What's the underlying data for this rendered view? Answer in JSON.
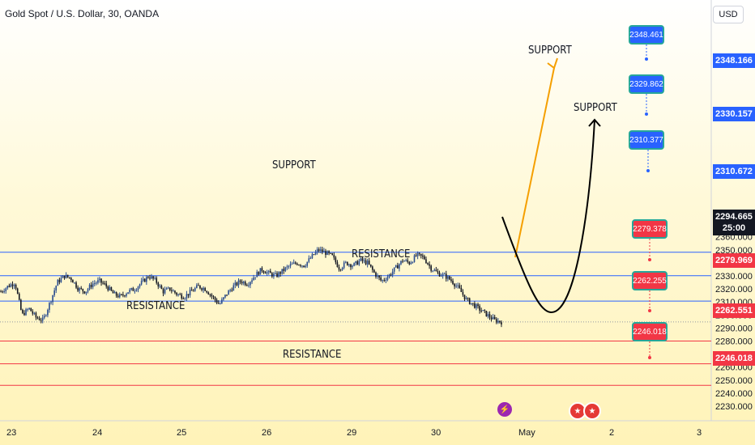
{
  "header": {
    "symbol": "Gold Spot / U.S. Dollar, 30, OANDA",
    "currency": "USD"
  },
  "chart_data": {
    "type": "candlestick",
    "y_ticks": [
      "2230.000",
      "2240.000",
      "2250.000",
      "2260.000",
      "2270.000",
      "2280.000",
      "2290.000",
      "2300.000",
      "2310.000",
      "2320.000",
      "2330.000",
      "2340.000",
      "2350.000",
      "2360.000"
    ],
    "x_ticks": [
      "23",
      "24",
      "25",
      "26",
      "29",
      "30",
      "May",
      "2",
      "3"
    ],
    "ylim": [
      2226,
      2362
    ],
    "current_price": "2294.665",
    "countdown": "25:00",
    "levels": [
      {
        "price": 2348.166,
        "label": "2348.166",
        "color": "#2962ff"
      },
      {
        "price": 2330.157,
        "label": "2330.157",
        "color": "#2962ff"
      },
      {
        "price": 2310.672,
        "label": "2310.672",
        "color": "#2962ff"
      },
      {
        "price": 2279.969,
        "label": "2279.969",
        "color": "#f23645"
      },
      {
        "price": 2262.551,
        "label": "2262.551",
        "color": "#f23645"
      },
      {
        "price": 2246.018,
        "label": "2246.018",
        "color": "#f23645"
      }
    ],
    "alerts_blue": [
      {
        "price": 2348.461,
        "label": "2348.461"
      },
      {
        "price": 2329.862,
        "label": "2329.862"
      },
      {
        "price": 2310.377,
        "label": "2310.377"
      }
    ],
    "alerts_red": [
      {
        "price": 2279.378,
        "label": "2279.378"
      },
      {
        "price": 2262.255,
        "label": "2262.255"
      },
      {
        "price": 2246.018,
        "label": "2246.018"
      }
    ],
    "annotations": [
      "SUPPORT",
      "SUPPORT",
      "SUPPORT",
      "RESISTANCE",
      "RESISTANCE",
      "RESISTANCE"
    ],
    "close_path": [
      2318,
      2322,
      2325,
      2300,
      2305,
      2298,
      2296,
      2310,
      2325,
      2330,
      2328,
      2320,
      2318,
      2324,
      2326,
      2322,
      2316,
      2314,
      2318,
      2320,
      2325,
      2330,
      2326,
      2318,
      2320,
      2316,
      2314,
      2318,
      2322,
      2320,
      2314,
      2308,
      2316,
      2322,
      2326,
      2324,
      2330,
      2335,
      2332,
      2330,
      2334,
      2338,
      2340,
      2338,
      2344,
      2350,
      2348,
      2345,
      2336,
      2340,
      2338,
      2342,
      2340,
      2332,
      2326,
      2330,
      2336,
      2342,
      2340,
      2346,
      2344,
      2336,
      2332,
      2330,
      2326,
      2320,
      2312,
      2308,
      2304,
      2300,
      2296,
      2294.665
    ],
    "volatility": 4
  }
}
